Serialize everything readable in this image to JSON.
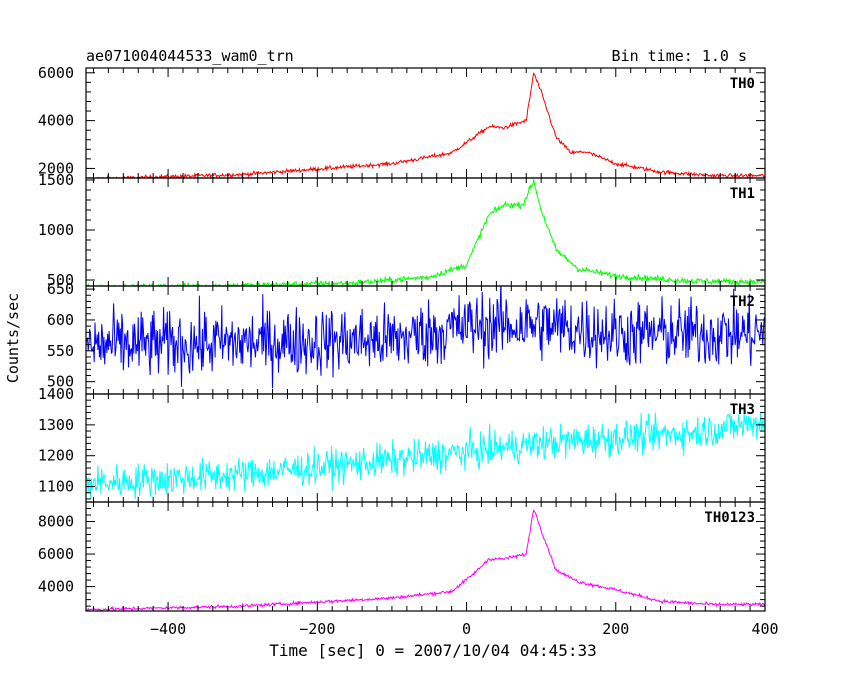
{
  "header": {
    "title": "ae071004044533_wam0_trn",
    "bin_time": "Bin time: 1.0 s"
  },
  "axes": {
    "xlabel": "Time [sec] 0 = 2007/10/04 04:45:33",
    "ylabel": "Counts/sec"
  },
  "chart_data": {
    "type": "line",
    "x_range": [
      -510,
      400
    ],
    "x_ticks": [
      -400,
      -200,
      0,
      200,
      400
    ],
    "x_tick_labels": [
      "−400",
      "−200",
      "0",
      "200",
      "400"
    ],
    "bin_seconds": 1.0,
    "panels": [
      {
        "name": "TH0",
        "color": "#ff0000",
        "ylim": [
          1600,
          6200
        ],
        "yticks": [
          2000,
          4000,
          6000
        ],
        "curve": [
          [
            -510,
            1550
          ],
          [
            -300,
            1750
          ],
          [
            -100,
            2200
          ],
          [
            -20,
            2650
          ],
          [
            10,
            3300
          ],
          [
            30,
            3750
          ],
          [
            50,
            3700
          ],
          [
            80,
            4000
          ],
          [
            90,
            6000
          ],
          [
            100,
            5200
          ],
          [
            120,
            3300
          ],
          [
            140,
            2650
          ],
          [
            160,
            2700
          ],
          [
            200,
            2200
          ],
          [
            260,
            1850
          ],
          [
            330,
            1700
          ],
          [
            400,
            1700
          ]
        ],
        "noise": 40
      },
      {
        "name": "TH1",
        "color": "#00ff00",
        "ylim": [
          440,
          1520
        ],
        "yticks": [
          500,
          1000,
          1500
        ],
        "curve": [
          [
            -510,
            425
          ],
          [
            -300,
            445
          ],
          [
            -150,
            470
          ],
          [
            -50,
            530
          ],
          [
            0,
            650
          ],
          [
            30,
            1150
          ],
          [
            50,
            1250
          ],
          [
            75,
            1250
          ],
          [
            90,
            1490
          ],
          [
            100,
            1200
          ],
          [
            120,
            800
          ],
          [
            150,
            610
          ],
          [
            200,
            540
          ],
          [
            300,
            490
          ],
          [
            400,
            480
          ]
        ],
        "noise": 15
      },
      {
        "name": "TH2",
        "color": "#0000ff",
        "ylim": [
          480,
          655
        ],
        "yticks": [
          500,
          550,
          600,
          650
        ],
        "curve": [
          [
            -510,
            558
          ],
          [
            -100,
            568
          ],
          [
            0,
            590
          ],
          [
            100,
            592
          ],
          [
            200,
            578
          ],
          [
            400,
            578
          ]
        ],
        "noise": 28
      },
      {
        "name": "TH3",
        "color": "#00ffff",
        "ylim": [
          1050,
          1400
        ],
        "yticks": [
          1100,
          1200,
          1300,
          1400
        ],
        "curve": [
          [
            -510,
            1110
          ],
          [
            -300,
            1140
          ],
          [
            -100,
            1185
          ],
          [
            100,
            1240
          ],
          [
            300,
            1275
          ],
          [
            400,
            1310
          ]
        ],
        "noise": 28
      },
      {
        "name": "TH0123",
        "color": "#ff00ff",
        "ylim": [
          2500,
          9200
        ],
        "yticks": [
          4000,
          6000,
          8000
        ],
        "curve": [
          [
            -510,
            2580
          ],
          [
            -300,
            2800
          ],
          [
            -100,
            3300
          ],
          [
            -20,
            3700
          ],
          [
            10,
            4800
          ],
          [
            30,
            5700
          ],
          [
            50,
            5700
          ],
          [
            80,
            6000
          ],
          [
            90,
            8800
          ],
          [
            100,
            7500
          ],
          [
            120,
            5000
          ],
          [
            150,
            4300
          ],
          [
            200,
            3800
          ],
          [
            260,
            3100
          ],
          [
            330,
            2900
          ],
          [
            400,
            2900
          ]
        ],
        "noise": 50
      }
    ]
  }
}
